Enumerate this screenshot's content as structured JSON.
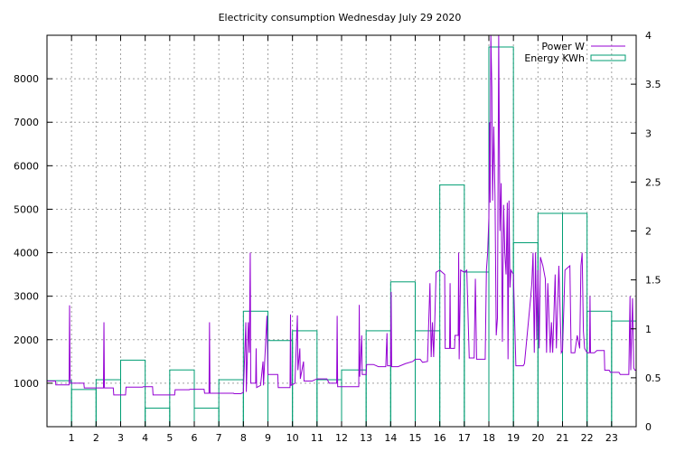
{
  "chart_data": {
    "type": "line",
    "title": "Electricity consumption Wednesday July 29 2020",
    "xlim": [
      0,
      24
    ],
    "x_ticks": [
      1,
      2,
      3,
      4,
      5,
      6,
      7,
      8,
      9,
      10,
      11,
      12,
      13,
      14,
      15,
      16,
      17,
      18,
      19,
      20,
      21,
      22,
      23
    ],
    "y_left_lim": [
      0,
      9000
    ],
    "y_left_ticks": [
      1000,
      2000,
      3000,
      4000,
      5000,
      6000,
      7000,
      8000
    ],
    "y_right_lim": [
      0,
      4
    ],
    "y_right_ticks": [
      "0",
      "0.5",
      "1",
      "1.5",
      "2",
      "2.5",
      "3",
      "3.5",
      "4"
    ],
    "grid": true,
    "legend_position": "top-right",
    "colors": {
      "power": "#9400d3",
      "energy": "#009e73"
    },
    "series": [
      {
        "name": "Power W",
        "axis": "left",
        "style": "line",
        "points": [
          [
            0,
            1050
          ],
          [
            0.35,
            1050
          ],
          [
            0.36,
            960
          ],
          [
            0.9,
            960
          ],
          [
            0.92,
            2790
          ],
          [
            0.94,
            1180
          ],
          [
            0.96,
            1000
          ],
          [
            1.5,
            1000
          ],
          [
            1.52,
            890
          ],
          [
            2.0,
            890
          ],
          [
            2.3,
            890
          ],
          [
            2.32,
            2400
          ],
          [
            2.34,
            890
          ],
          [
            2.7,
            890
          ],
          [
            2.72,
            730
          ],
          [
            3.2,
            730
          ],
          [
            3.22,
            910
          ],
          [
            3.9,
            910
          ],
          [
            3.92,
            920
          ],
          [
            4.3,
            920
          ],
          [
            4.32,
            730
          ],
          [
            5.0,
            730
          ],
          [
            5.2,
            730
          ],
          [
            5.22,
            850
          ],
          [
            5.8,
            850
          ],
          [
            5.82,
            860
          ],
          [
            6.4,
            860
          ],
          [
            6.42,
            770
          ],
          [
            6.6,
            770
          ],
          [
            6.62,
            2400
          ],
          [
            6.64,
            770
          ],
          [
            7.6,
            770
          ],
          [
            7.62,
            760
          ],
          [
            7.9,
            760
          ],
          [
            8.0,
            790
          ],
          [
            8.1,
            2400
          ],
          [
            8.12,
            800
          ],
          [
            8.2,
            2400
          ],
          [
            8.24,
            1700
          ],
          [
            8.28,
            4000
          ],
          [
            8.3,
            1000
          ],
          [
            8.5,
            1000
          ],
          [
            8.52,
            1800
          ],
          [
            8.54,
            900
          ],
          [
            8.7,
            950
          ],
          [
            8.8,
            1500
          ],
          [
            8.82,
            950
          ],
          [
            8.96,
            2550
          ],
          [
            9.0,
            1200
          ],
          [
            9.4,
            1200
          ],
          [
            9.42,
            900
          ],
          [
            9.9,
            900
          ],
          [
            9.92,
            2580
          ],
          [
            9.94,
            950
          ],
          [
            10.1,
            1000
          ],
          [
            10.2,
            2560
          ],
          [
            10.22,
            1300
          ],
          [
            10.3,
            1800
          ],
          [
            10.32,
            1100
          ],
          [
            10.45,
            1500
          ],
          [
            10.47,
            1050
          ],
          [
            10.8,
            1050
          ],
          [
            11.0,
            1100
          ],
          [
            11.4,
            1100
          ],
          [
            11.5,
            1000
          ],
          [
            11.8,
            1000
          ],
          [
            11.82,
            2550
          ],
          [
            11.84,
            920
          ],
          [
            12.4,
            920
          ],
          [
            12.7,
            920
          ],
          [
            12.72,
            2800
          ],
          [
            12.74,
            1150
          ],
          [
            12.82,
            2100
          ],
          [
            12.84,
            1200
          ],
          [
            13.0,
            1200
          ],
          [
            13.02,
            1430
          ],
          [
            13.3,
            1430
          ],
          [
            13.5,
            1380
          ],
          [
            13.8,
            1380
          ],
          [
            13.85,
            2150
          ],
          [
            13.87,
            1400
          ],
          [
            14.0,
            1400
          ],
          [
            14.02,
            3100
          ],
          [
            14.04,
            1380
          ],
          [
            14.3,
            1380
          ],
          [
            14.6,
            1450
          ],
          [
            14.9,
            1500
          ],
          [
            15.0,
            1550
          ],
          [
            15.2,
            1550
          ],
          [
            15.3,
            1480
          ],
          [
            15.5,
            1500
          ],
          [
            15.6,
            3300
          ],
          [
            15.65,
            1600
          ],
          [
            15.7,
            2400
          ],
          [
            15.75,
            1600
          ],
          [
            15.8,
            2500
          ],
          [
            15.85,
            3550
          ],
          [
            16.0,
            3600
          ],
          [
            16.1,
            3550
          ],
          [
            16.2,
            3500
          ],
          [
            16.22,
            1800
          ],
          [
            16.4,
            1800
          ],
          [
            16.42,
            3300
          ],
          [
            16.44,
            1800
          ],
          [
            16.6,
            1800
          ],
          [
            16.62,
            2100
          ],
          [
            16.75,
            2100
          ],
          [
            16.77,
            4000
          ],
          [
            16.79,
            1550
          ],
          [
            16.85,
            3600
          ],
          [
            17.0,
            3550
          ],
          [
            17.1,
            3600
          ],
          [
            17.2,
            1580
          ],
          [
            17.4,
            1580
          ],
          [
            17.45,
            3400
          ],
          [
            17.5,
            1550
          ],
          [
            17.6,
            1550
          ],
          [
            17.85,
            1550
          ],
          [
            17.9,
            3600
          ],
          [
            17.95,
            4000
          ],
          [
            18.0,
            4800
          ],
          [
            18.03,
            7000
          ],
          [
            18.05,
            5150
          ],
          [
            18.08,
            9000
          ],
          [
            18.12,
            7800
          ],
          [
            18.15,
            5200
          ],
          [
            18.2,
            6900
          ],
          [
            18.25,
            5300
          ],
          [
            18.3,
            2100
          ],
          [
            18.35,
            2500
          ],
          [
            18.4,
            9000
          ],
          [
            18.45,
            4500
          ],
          [
            18.5,
            5600
          ],
          [
            18.55,
            1950
          ],
          [
            18.6,
            5100
          ],
          [
            18.65,
            4000
          ],
          [
            18.7,
            3500
          ],
          [
            18.75,
            5150
          ],
          [
            18.78,
            1550
          ],
          [
            18.82,
            5200
          ],
          [
            18.86,
            3200
          ],
          [
            18.9,
            3600
          ],
          [
            19.0,
            3500
          ],
          [
            19.1,
            1400
          ],
          [
            19.4,
            1400
          ],
          [
            19.45,
            1450
          ],
          [
            19.7,
            2950
          ],
          [
            19.75,
            3300
          ],
          [
            19.8,
            4000
          ],
          [
            19.85,
            1700
          ],
          [
            19.9,
            4000
          ],
          [
            19.95,
            2000
          ],
          [
            20.0,
            3600
          ],
          [
            20.05,
            1800
          ],
          [
            20.1,
            3900
          ],
          [
            20.2,
            3700
          ],
          [
            20.3,
            3400
          ],
          [
            20.35,
            1700
          ],
          [
            20.4,
            3300
          ],
          [
            20.5,
            1700
          ],
          [
            20.55,
            2400
          ],
          [
            20.6,
            1700
          ],
          [
            20.7,
            3500
          ],
          [
            20.75,
            1800
          ],
          [
            20.85,
            3700
          ],
          [
            20.95,
            1700
          ],
          [
            21.0,
            1750
          ],
          [
            21.1,
            3600
          ],
          [
            21.2,
            3650
          ],
          [
            21.3,
            3700
          ],
          [
            21.35,
            1700
          ],
          [
            21.5,
            1700
          ],
          [
            21.6,
            2100
          ],
          [
            21.7,
            1800
          ],
          [
            21.75,
            3700
          ],
          [
            21.8,
            4000
          ],
          [
            21.85,
            2200
          ],
          [
            21.9,
            1800
          ],
          [
            22.0,
            1700
          ],
          [
            22.1,
            1700
          ],
          [
            22.12,
            3000
          ],
          [
            22.14,
            1700
          ],
          [
            22.3,
            1700
          ],
          [
            22.4,
            1750
          ],
          [
            22.7,
            1750
          ],
          [
            22.72,
            1300
          ],
          [
            22.9,
            1300
          ],
          [
            22.95,
            1250
          ],
          [
            23.3,
            1250
          ],
          [
            23.35,
            1200
          ],
          [
            23.7,
            1200
          ],
          [
            23.75,
            3000
          ],
          [
            23.78,
            1300
          ],
          [
            23.85,
            2950
          ],
          [
            23.9,
            1350
          ],
          [
            23.95,
            1300
          ],
          [
            24.0,
            1300
          ]
        ]
      },
      {
        "name": "Energy KWh",
        "axis": "right",
        "style": "steps",
        "bins": [
          [
            0,
            1,
            0.47
          ],
          [
            1,
            2,
            0.38
          ],
          [
            2,
            3,
            0.48
          ],
          [
            3,
            4,
            0.68
          ],
          [
            4,
            5,
            0.19
          ],
          [
            5,
            6,
            0.58
          ],
          [
            6,
            7,
            0.19
          ],
          [
            7,
            8,
            0.48
          ],
          [
            8,
            9,
            1.18
          ],
          [
            9,
            10,
            0.88
          ],
          [
            10,
            11,
            0.98
          ],
          [
            11,
            12,
            0.48
          ],
          [
            12,
            13,
            0.58
          ],
          [
            13,
            14,
            0.98
          ],
          [
            14,
            15,
            1.48
          ],
          [
            15,
            16,
            0.98
          ],
          [
            16,
            17,
            2.47
          ],
          [
            17,
            18,
            1.58
          ],
          [
            18,
            19,
            3.88
          ],
          [
            19,
            20,
            1.88
          ],
          [
            20,
            21,
            2.18
          ],
          [
            21,
            22,
            2.18
          ],
          [
            22,
            23,
            1.18
          ],
          [
            23,
            24,
            1.08
          ]
        ]
      }
    ]
  }
}
